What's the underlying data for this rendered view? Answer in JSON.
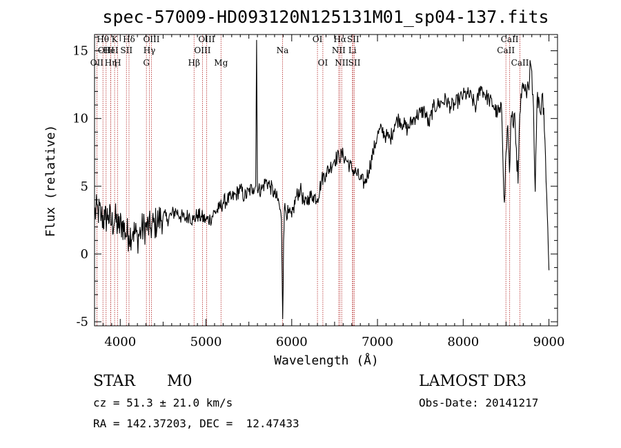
{
  "chart_data": {
    "type": "line",
    "title": "spec-57009-HD093120N125131M01_sp04-137.fits",
    "xlabel": "Wavelength (Å)",
    "ylabel": "Flux (relative)",
    "xlim": [
      3700,
      9100
    ],
    "ylim": [
      -5.3,
      16.2
    ],
    "xticks": [
      4000,
      5000,
      6000,
      7000,
      8000,
      9000
    ],
    "yticks": [
      -5,
      0,
      5,
      10,
      15
    ],
    "grid": false,
    "series": [
      {
        "name": "spectrum",
        "x": [
          3700,
          3740,
          3780,
          3820,
          3860,
          3900,
          3940,
          3980,
          4020,
          4060,
          4100,
          4150,
          4200,
          4250,
          4300,
          4350,
          4400,
          4450,
          4500,
          4550,
          4600,
          4650,
          4700,
          4750,
          4800,
          4850,
          4900,
          4950,
          5000,
          5050,
          5100,
          5150,
          5200,
          5250,
          5300,
          5350,
          5400,
          5450,
          5500,
          5550,
          5580,
          5590,
          5600,
          5610,
          5650,
          5700,
          5750,
          5800,
          5850,
          5880,
          5895,
          5905,
          5915,
          5930,
          5960,
          6000,
          6050,
          6100,
          6150,
          6200,
          6250,
          6300,
          6350,
          6400,
          6450,
          6500,
          6550,
          6600,
          6650,
          6700,
          6750,
          6800,
          6850,
          6900,
          6950,
          7000,
          7050,
          7100,
          7150,
          7200,
          7250,
          7300,
          7350,
          7400,
          7450,
          7500,
          7550,
          7600,
          7650,
          7700,
          7750,
          7800,
          7850,
          7900,
          7950,
          8000,
          8050,
          8100,
          8150,
          8200,
          8250,
          8300,
          8350,
          8400,
          8450,
          8480,
          8500,
          8520,
          8540,
          8560,
          8580,
          8600,
          8620,
          8640,
          8660,
          8680,
          8700,
          8720,
          8740,
          8760,
          8780,
          8800,
          8820,
          8840,
          8860,
          8880,
          8900,
          8920,
          8940,
          8960,
          8980,
          9000
        ],
        "y": [
          3.0,
          3.2,
          2.8,
          2.5,
          2.9,
          2.2,
          2.6,
          1.9,
          2.3,
          1.6,
          1.4,
          1.7,
          1.2,
          1.8,
          2.0,
          1.9,
          2.2,
          2.5,
          2.8,
          2.6,
          2.9,
          3.2,
          2.8,
          2.6,
          2.9,
          2.5,
          2.9,
          2.7,
          2.5,
          2.6,
          3.1,
          3.3,
          3.8,
          4.0,
          4.1,
          4.4,
          4.8,
          4.2,
          4.6,
          4.9,
          5.0,
          15.8,
          4.7,
          4.7,
          4.8,
          5.4,
          5.0,
          4.4,
          3.8,
          2.5,
          -4.8,
          1.0,
          3.4,
          3.2,
          3.0,
          2.7,
          4.2,
          4.8,
          3.6,
          4.2,
          4.3,
          4.1,
          5.5,
          6.0,
          6.4,
          7.0,
          7.2,
          7.3,
          6.8,
          6.3,
          6.0,
          5.5,
          5.2,
          6.2,
          7.5,
          8.8,
          9.2,
          8.7,
          8.5,
          9.6,
          10.0,
          9.6,
          9.2,
          9.8,
          10.2,
          10.4,
          10.6,
          9.5,
          10.8,
          11.0,
          11.2,
          11.4,
          10.9,
          11.0,
          11.4,
          11.7,
          11.8,
          11.5,
          10.8,
          12.4,
          11.8,
          11.4,
          11.0,
          10.3,
          10.4,
          3.8,
          7.5,
          9.5,
          6.0,
          10.2,
          9.5,
          10.4,
          7.8,
          5.2,
          10.3,
          11.5,
          12.2,
          12.0,
          11.5,
          12.3,
          14.3,
          13.5,
          10.8,
          4.6,
          11.2,
          11.6,
          10.4,
          11.8,
          10.8,
          7.2,
          3.0,
          -1.2
        ]
      }
    ],
    "spectral_lines": [
      {
        "label": "OII",
        "x": 3727,
        "row": 3
      },
      {
        "label": "Hθ",
        "x": 3798,
        "row": 1
      },
      {
        "label": "OIII",
        "x": 3835,
        "row": 2
      },
      {
        "label": "Hη",
        "x": 3889,
        "row": 3
      },
      {
        "label": "HeI",
        "x": 3889,
        "row": 2
      },
      {
        "label": "K",
        "x": 3934,
        "row": 1
      },
      {
        "label": "H",
        "x": 3968,
        "row": 3
      },
      {
        "label": "SII",
        "x": 4072,
        "row": 2
      },
      {
        "label": "Hδ",
        "x": 4102,
        "row": 1
      },
      {
        "label": "G",
        "x": 4305,
        "row": 3
      },
      {
        "label": "OIII",
        "x": 4364,
        "row": 1
      },
      {
        "label": "Hγ",
        "x": 4340,
        "row": 2
      },
      {
        "label": "Hβ",
        "x": 4861,
        "row": 3
      },
      {
        "label": "OIII",
        "x": 4959,
        "row": 2
      },
      {
        "label": "OIII",
        "x": 5007,
        "row": 1
      },
      {
        "label": "Mg",
        "x": 5175,
        "row": 3
      },
      {
        "label": "Na",
        "x": 5893,
        "row": 2
      },
      {
        "label": "OI",
        "x": 6300,
        "row": 1
      },
      {
        "label": "OI",
        "x": 6363,
        "row": 3
      },
      {
        "label": "NII",
        "x": 6548,
        "row": 2
      },
      {
        "label": "Hα",
        "x": 6563,
        "row": 1
      },
      {
        "label": "NII",
        "x": 6583,
        "row": 3
      },
      {
        "label": "SII",
        "x": 6716,
        "row": 1
      },
      {
        "label": "Li",
        "x": 6708,
        "row": 2
      },
      {
        "label": "SII",
        "x": 6731,
        "row": 3
      },
      {
        "label": "CaII",
        "x": 8498,
        "row": 2
      },
      {
        "label": "CaII",
        "x": 8542,
        "row": 1
      },
      {
        "label": "CaII",
        "x": 8662,
        "row": 3
      }
    ]
  },
  "info": {
    "object_class": "STAR",
    "subclass": "M0",
    "survey": "LAMOST DR3",
    "cz": "cz = 51.3 ± 21.0 km/s",
    "obs_date": "Obs-Date: 20141217",
    "coords": "RA = 142.37203, DEC =  12.47433"
  },
  "colors": {
    "line_marker": "#b22222",
    "spectrum": "#000000"
  }
}
